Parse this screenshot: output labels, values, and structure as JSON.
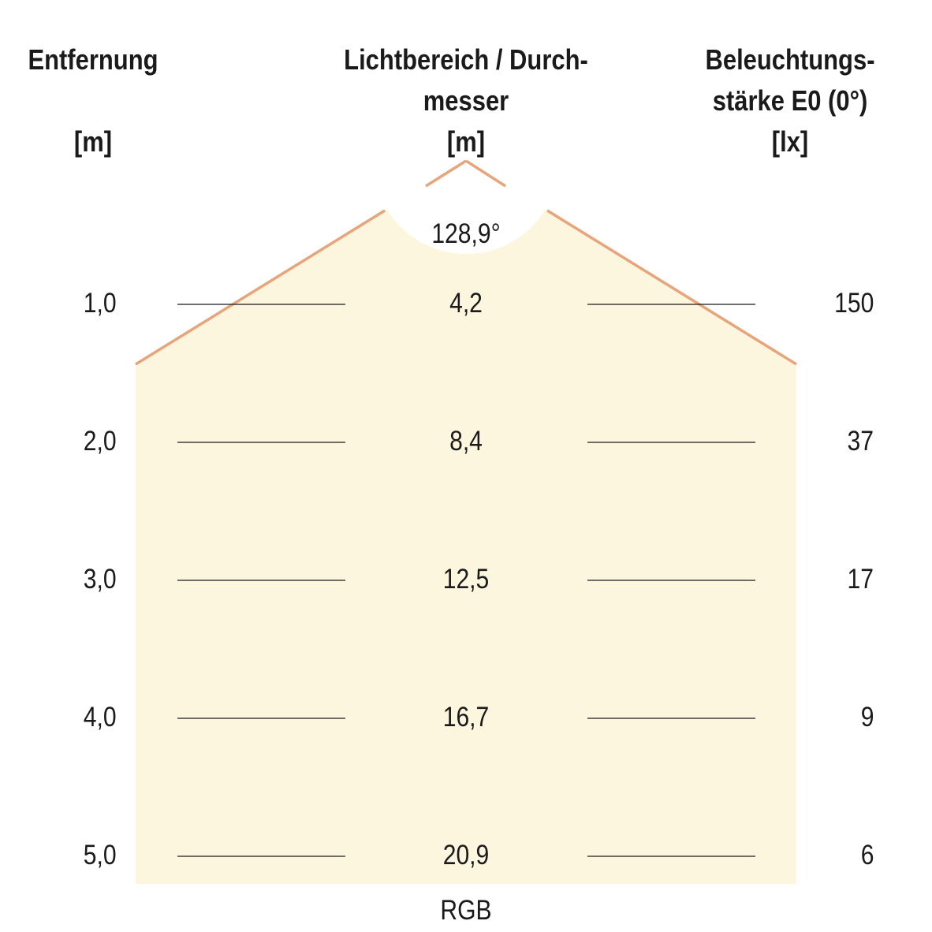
{
  "headers": {
    "distance": {
      "line1": "Entfernung",
      "unit": "[m]"
    },
    "diameter": {
      "line1": "Lichtbereich / Durch-",
      "line2": "messer",
      "unit": "[m]"
    },
    "illuminance": {
      "line1": "Beleuchtungs-",
      "line2": "stärke E0 (0°)",
      "unit": "[lx]"
    }
  },
  "beam_angle": "128,9°",
  "rows": [
    {
      "distance": "1,0",
      "diameter": "4,2",
      "illuminance": "150"
    },
    {
      "distance": "2,0",
      "diameter": "8,4",
      "illuminance": "37"
    },
    {
      "distance": "3,0",
      "diameter": "12,5",
      "illuminance": "17"
    },
    {
      "distance": "4,0",
      "diameter": "16,7",
      "illuminance": "9"
    },
    {
      "distance": "5,0",
      "diameter": "20,9",
      "illuminance": "6"
    }
  ],
  "footer_label": "RGB",
  "colors": {
    "beam_fill": "#fdf6df",
    "beam_edge": "#e8a47a",
    "rule_line": "#1a1a1a",
    "text": "#1a1a1a"
  }
}
